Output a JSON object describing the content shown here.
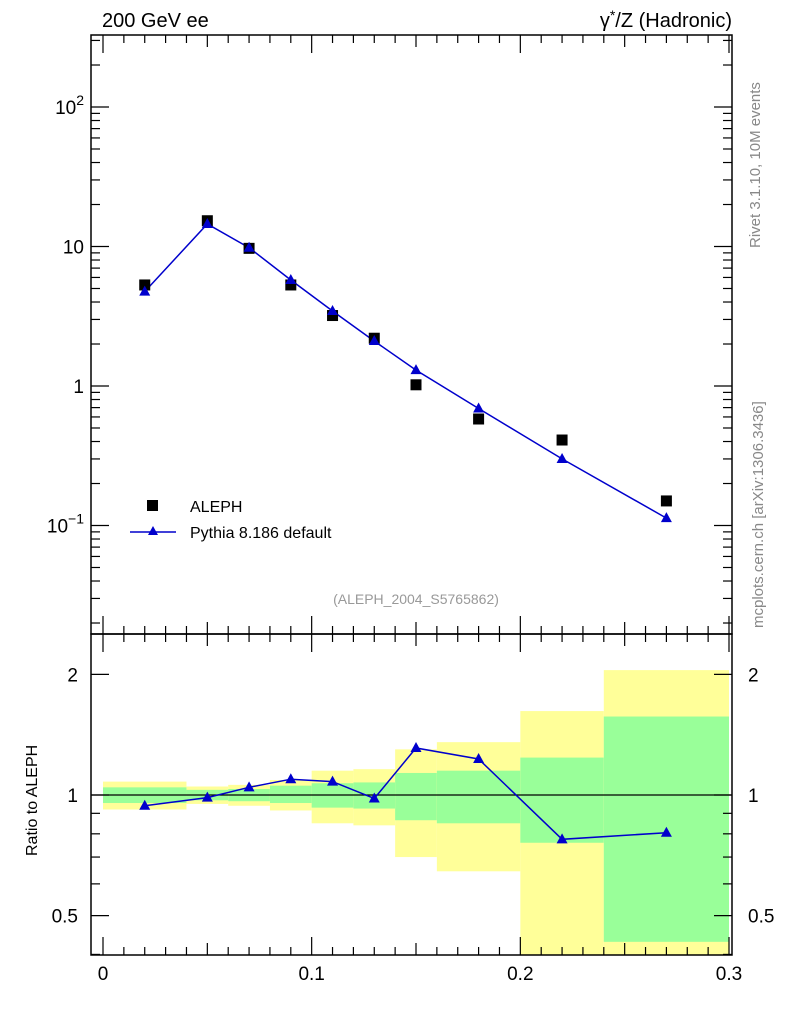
{
  "header": {
    "left_title": "200 GeV ee",
    "right_title_prefix": "γ",
    "right_title_sup": "*",
    "right_title_suffix": "/Z (Hadronic)"
  },
  "side_labels": {
    "rivet": "Rivet 3.1.10,  10M events",
    "mcplots": "mcplots.cern.ch [arXiv:1306.3436]"
  },
  "analysis_id": "(ALEPH_2004_S5765862)",
  "ratio_ylabel": "Ratio to ALEPH",
  "colors": {
    "mc": "#0000cc",
    "data": "#000000",
    "band_inner": "#99ff99",
    "band_outer": "#ffff99"
  },
  "chart_data": [
    {
      "type": "scatter",
      "yscale": "log",
      "xlim": [
        0,
        0.3
      ],
      "ylim": [
        0.02,
        320
      ],
      "yticks": [
        {
          "value": 0.1,
          "base": "10",
          "exp": "−1"
        },
        {
          "value": 1,
          "label": "1"
        },
        {
          "value": 10,
          "label": "10"
        },
        {
          "value": 100,
          "base": "10",
          "exp": "2"
        }
      ],
      "legend": {
        "position": "bottom-left"
      },
      "series": [
        {
          "name": "ALEPH",
          "marker": "square",
          "x": [
            0.02,
            0.05,
            0.07,
            0.09,
            0.11,
            0.13,
            0.15,
            0.18,
            0.22,
            0.27
          ],
          "y": [
            5.3,
            15.3,
            9.7,
            5.3,
            3.2,
            2.2,
            1.02,
            0.58,
            0.41,
            0.15
          ]
        },
        {
          "name": "Pythia 8.186 default",
          "marker": "triangle",
          "x": [
            0.02,
            0.05,
            0.07,
            0.09,
            0.11,
            0.13,
            0.15,
            0.18,
            0.22,
            0.27
          ],
          "y": [
            4.75,
            14.5,
            9.8,
            5.75,
            3.45,
            2.1,
            1.3,
            0.69,
            0.3,
            0.113
          ]
        }
      ]
    },
    {
      "type": "line",
      "ylabel": "Ratio to ALEPH",
      "xlim": [
        0,
        0.3
      ],
      "ylim": [
        0.37,
        2.3
      ],
      "xticks": [
        {
          "value": 0,
          "label": "0"
        },
        {
          "value": 0.1,
          "label": "0.1"
        },
        {
          "value": 0.2,
          "label": "0.2"
        },
        {
          "value": 0.3,
          "label": "0.3"
        }
      ],
      "yticks": [
        {
          "value": 0.5,
          "label": "0.5"
        },
        {
          "value": 1,
          "label": "1"
        },
        {
          "value": 2,
          "label": "2"
        }
      ],
      "bands": [
        {
          "x0": 0.0,
          "x1": 0.04,
          "outer": [
            0.92,
            1.08
          ],
          "inner": [
            0.955,
            1.045
          ]
        },
        {
          "x0": 0.04,
          "x1": 0.06,
          "outer": [
            0.95,
            1.05
          ],
          "inner": [
            0.97,
            1.03
          ]
        },
        {
          "x0": 0.06,
          "x1": 0.08,
          "outer": [
            0.94,
            1.06
          ],
          "inner": [
            0.965,
            1.035
          ]
        },
        {
          "x0": 0.08,
          "x1": 0.1,
          "outer": [
            0.915,
            1.09
          ],
          "inner": [
            0.955,
            1.055
          ]
        },
        {
          "x0": 0.1,
          "x1": 0.12,
          "outer": [
            0.85,
            1.15
          ],
          "inner": [
            0.93,
            1.07
          ]
        },
        {
          "x0": 0.12,
          "x1": 0.14,
          "outer": [
            0.84,
            1.16
          ],
          "inner": [
            0.925,
            1.075
          ]
        },
        {
          "x0": 0.14,
          "x1": 0.16,
          "outer": [
            0.7,
            1.3
          ],
          "inner": [
            0.865,
            1.135
          ]
        },
        {
          "x0": 0.16,
          "x1": 0.2,
          "outer": [
            0.645,
            1.355
          ],
          "inner": [
            0.85,
            1.15
          ]
        },
        {
          "x0": 0.2,
          "x1": 0.24,
          "outer": [
            0.38,
            1.62
          ],
          "inner": [
            0.76,
            1.24
          ]
        },
        {
          "x0": 0.24,
          "x1": 0.3,
          "outer": [
            0.375,
            2.05
          ],
          "inner": [
            0.43,
            1.57
          ]
        }
      ],
      "reference_line": 1,
      "series": [
        {
          "name": "Pythia 8.186 default",
          "marker": "triangle",
          "x": [
            0.02,
            0.05,
            0.07,
            0.09,
            0.11,
            0.13,
            0.15,
            0.18,
            0.22,
            0.27
          ],
          "y": [
            0.94,
            0.985,
            1.045,
            1.095,
            1.08,
            0.98,
            1.31,
            1.23,
            0.775,
            0.805
          ]
        }
      ]
    }
  ]
}
